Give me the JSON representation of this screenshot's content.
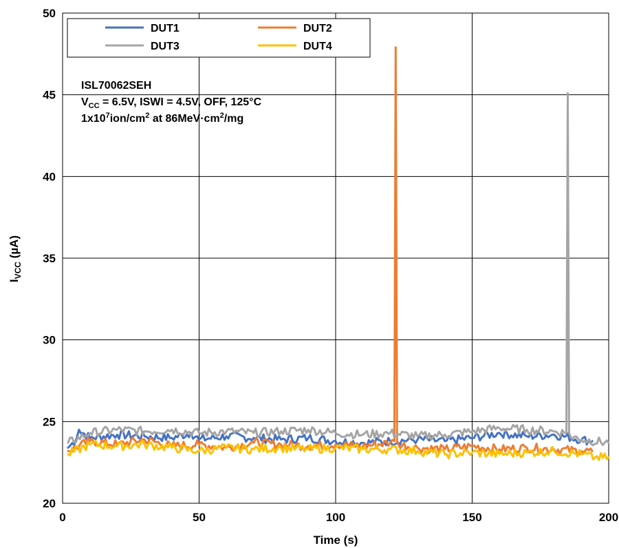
{
  "chart_data": {
    "type": "line",
    "xlabel": "Time (s)",
    "ylabel": {
      "main": "I",
      "sub": "VCC",
      "unit": " (µA)"
    },
    "xlim": [
      0,
      200
    ],
    "ylim": [
      20,
      50
    ],
    "x_ticks": [
      "0",
      "50",
      "100",
      "150",
      "200"
    ],
    "y_ticks": [
      "20",
      "25",
      "30",
      "35",
      "40",
      "45",
      "50"
    ],
    "grid": true,
    "legend_position": "top-left",
    "annotation": {
      "line1": "ISL70062SEH",
      "line2": {
        "v": "V",
        "sub": "CC",
        "rest": " = 6.5V, ISWI = 4.5V, OFF, 125°C"
      },
      "line3": {
        "a": "1x10",
        "sup1": "7",
        "b": "ion/cm",
        "sup2": "2",
        "c": " at 86MeV·cm",
        "sup3": "2",
        "d": "/mg"
      }
    },
    "series": [
      {
        "name": "DUT1",
        "color": "#4472C4",
        "x": [
          2,
          5,
          6,
          10,
          20,
          30,
          40,
          47,
          50,
          60,
          70,
          80,
          90,
          100,
          110,
          120,
          130,
          140,
          150,
          160,
          170,
          180,
          190,
          194
        ],
        "y": [
          23.4,
          23.9,
          24.5,
          24.0,
          24.2,
          24.1,
          24.0,
          24.3,
          23.9,
          24.1,
          24.0,
          23.9,
          24.0,
          23.8,
          23.7,
          23.8,
          23.9,
          23.8,
          24.0,
          24.3,
          24.1,
          24.2,
          23.9,
          23.8
        ]
      },
      {
        "name": "DUT2",
        "color": "#ED7D31",
        "x": [
          2,
          10,
          20,
          30,
          40,
          50,
          60,
          70,
          80,
          90,
          100,
          110,
          120,
          121.5,
          122,
          122.5,
          123,
          130,
          140,
          150,
          160,
          170,
          180,
          190,
          194
        ],
        "y": [
          23.2,
          23.8,
          23.6,
          23.9,
          23.5,
          23.6,
          23.4,
          23.7,
          23.6,
          23.5,
          23.6,
          23.5,
          23.7,
          23.8,
          47.9,
          23.8,
          23.6,
          23.4,
          23.3,
          23.5,
          23.3,
          23.4,
          23.3,
          23.2,
          23.2
        ]
      },
      {
        "name": "DUT3",
        "color": "#A5A5A5",
        "x": [
          2,
          10,
          20,
          30,
          40,
          50,
          60,
          70,
          80,
          90,
          100,
          110,
          120,
          130,
          140,
          150,
          160,
          170,
          180,
          184.5,
          185,
          185.5,
          186,
          190,
          200
        ],
        "y": [
          23.7,
          24.3,
          24.5,
          24.4,
          24.5,
          24.3,
          24.4,
          24.3,
          24.4,
          24.5,
          24.3,
          24.2,
          24.3,
          24.1,
          24.2,
          24.4,
          24.6,
          24.5,
          24.4,
          24.3,
          45.1,
          24.3,
          24.1,
          23.9,
          23.7
        ]
      },
      {
        "name": "DUT4",
        "color": "#FFC000",
        "x": [
          2,
          10,
          20,
          30,
          40,
          50,
          60,
          70,
          80,
          90,
          100,
          110,
          120,
          130,
          140,
          150,
          160,
          170,
          180,
          190,
          195,
          200
        ],
        "y": [
          23.0,
          23.6,
          23.5,
          23.6,
          23.4,
          23.2,
          23.4,
          23.3,
          23.4,
          23.3,
          23.4,
          23.3,
          23.3,
          23.2,
          23.0,
          23.1,
          23.0,
          23.1,
          23.2,
          23.0,
          22.8,
          22.8
        ]
      }
    ]
  }
}
